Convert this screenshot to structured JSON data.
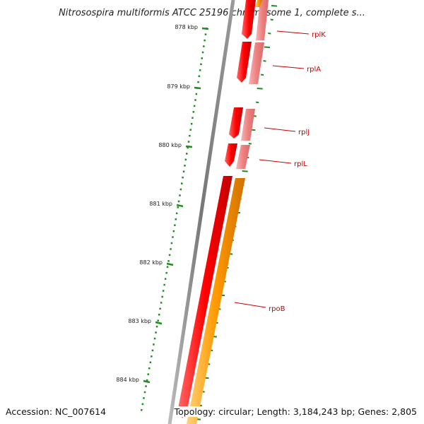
{
  "title": "Nitrosospira multiformis ATCC 25196 chromosome 1, complete s...",
  "footer": {
    "accession": "Accession: NC_007614",
    "summary": "Topology: circular; Length: 3,184,243 bp; Genes: 2,805"
  },
  "ruler_labels": [
    "878 kbp",
    "879 kbp",
    "880 kbp",
    "881 kbp",
    "882 kbp",
    "883 kbp",
    "884 kbp"
  ],
  "genes": [
    {
      "name": "rplK",
      "color": "#ff0000",
      "strand_color": "#f08080"
    },
    {
      "name": "rplA",
      "color": "#ff0000",
      "strand_color": "#f08080"
    },
    {
      "name": "rplJ",
      "color": "#ff0000",
      "strand_color": "#f08080"
    },
    {
      "name": "rplL",
      "color": "#ff0000",
      "strand_color": "#f08080"
    },
    {
      "name": "rpoB",
      "color": "#ff0000",
      "strand_color": "#ff9900"
    }
  ],
  "colors": {
    "backbone": "#888888",
    "tick": "#228b22",
    "gene_red": "#ff0000",
    "gene_pink": "#f08080",
    "gene_orange": "#ff9900",
    "label": "#cc0000"
  }
}
